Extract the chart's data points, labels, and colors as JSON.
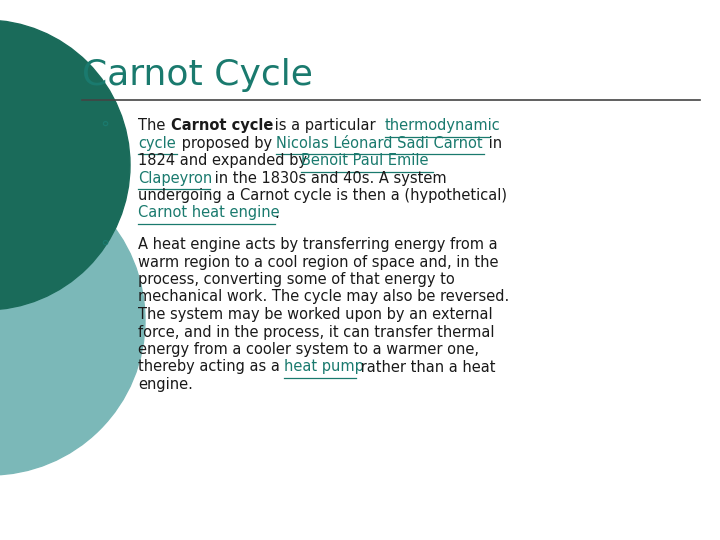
{
  "title": "Carnot Cycle",
  "title_color": "#1a7a6e",
  "title_fontsize": 26,
  "bg_color": "#ffffff",
  "line_color": "#444444",
  "text_color": "#1a1a1a",
  "link_color": "#1a7a6e",
  "bullet_color": "#1a7a6e",
  "dark_circle_color": "#1a6b5a",
  "light_circle_color": "#7bb8b8",
  "p1_lines": [
    [
      [
        "The ",
        false,
        false
      ],
      [
        "Carnot cycle",
        true,
        false
      ],
      [
        " is a particular ",
        false,
        false
      ],
      [
        "thermodynamic",
        false,
        true
      ]
    ],
    [
      [
        "cycle",
        false,
        true
      ],
      [
        " proposed by ",
        false,
        false
      ],
      [
        "Nicolas Léonard Sadi Carnot",
        false,
        true
      ],
      [
        " in",
        false,
        false
      ]
    ],
    [
      [
        "1824 and expanded by ",
        false,
        false
      ],
      [
        "Benoit Paul Emile",
        false,
        true
      ]
    ],
    [
      [
        "Clapeyron",
        false,
        true
      ],
      [
        " in the 1830s and 40s. A system",
        false,
        false
      ]
    ],
    [
      [
        "undergoing a Carnot cycle is then a (hypothetical)",
        false,
        false
      ]
    ],
    [
      [
        "Carnot heat engine",
        false,
        true
      ],
      [
        ".",
        false,
        false
      ]
    ]
  ],
  "p2_lines": [
    [
      [
        "A heat engine acts by transferring energy from a",
        false,
        false
      ]
    ],
    [
      [
        "warm region to a cool region of space and, in the",
        false,
        false
      ]
    ],
    [
      [
        "process, converting some of that energy to",
        false,
        false
      ]
    ],
    [
      [
        "mechanical work. The cycle may also be reversed.",
        false,
        false
      ]
    ],
    [
      [
        "The system may be worked upon by an external",
        false,
        false
      ]
    ],
    [
      [
        "force, and in the process, it can transfer thermal",
        false,
        false
      ]
    ],
    [
      [
        "energy from a cooler system to a warmer one,",
        false,
        false
      ]
    ],
    [
      [
        "thereby acting as a ",
        false,
        false
      ],
      [
        "heat pump",
        false,
        true
      ],
      [
        " rather than a heat",
        false,
        false
      ]
    ],
    [
      [
        "engine.",
        false,
        false
      ]
    ]
  ],
  "fig_width": 7.2,
  "fig_height": 5.4,
  "dpi": 100
}
